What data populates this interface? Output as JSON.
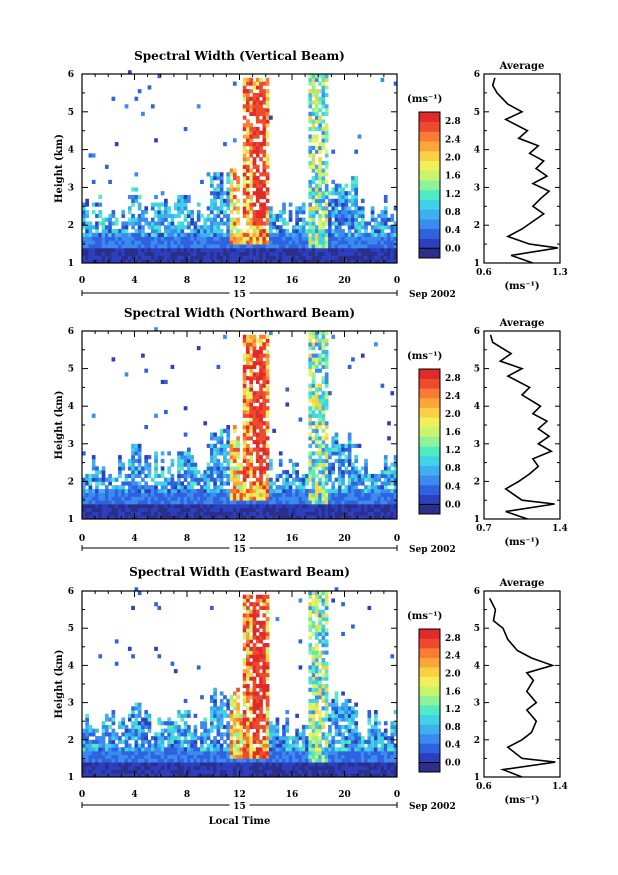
{
  "chart_data": [
    {
      "type": "heatmap",
      "title": "Spectral Width (Vertical Beam)",
      "ylabel": "Height (km)",
      "x_ticks": [
        "0",
        "4",
        "8",
        "12",
        "16",
        "20",
        "0"
      ],
      "y_ticks": [
        "1",
        "2",
        "3",
        "4",
        "5",
        "6"
      ],
      "xlim": [
        0,
        24
      ],
      "ylim": [
        1,
        6
      ],
      "day_label": "15",
      "date_label": "Sep 2002",
      "colorbar": {
        "unit": "(ms⁻¹)",
        "ticks": [
          "0.0",
          "0.4",
          "0.8",
          "1.2",
          "1.6",
          "2.0",
          "2.4",
          "2.8"
        ],
        "range": [
          0,
          3.0
        ]
      },
      "profile": {
        "title": "Average",
        "xlabel": "(ms⁻¹)",
        "x_ticks": [
          "0.6",
          "1.3"
        ],
        "xlim": [
          0.6,
          1.3
        ],
        "y_ticks": [
          "1",
          "2",
          "3",
          "4",
          "5",
          "6"
        ],
        "ylim": [
          1,
          6
        ],
        "points": [
          [
            1.05,
            1.0
          ],
          [
            0.85,
            1.2
          ],
          [
            1.28,
            1.4
          ],
          [
            1.02,
            1.5
          ],
          [
            0.82,
            1.7
          ],
          [
            0.95,
            1.9
          ],
          [
            1.05,
            2.1
          ],
          [
            1.15,
            2.3
          ],
          [
            1.05,
            2.5
          ],
          [
            1.12,
            2.7
          ],
          [
            1.2,
            2.9
          ],
          [
            1.05,
            3.1
          ],
          [
            1.18,
            3.3
          ],
          [
            1.08,
            3.5
          ],
          [
            1.15,
            3.7
          ],
          [
            1.02,
            3.9
          ],
          [
            1.1,
            4.1
          ],
          [
            0.92,
            4.3
          ],
          [
            1.0,
            4.5
          ],
          [
            0.8,
            4.8
          ],
          [
            0.95,
            5.0
          ],
          [
            0.82,
            5.2
          ],
          [
            0.72,
            5.5
          ],
          [
            0.68,
            5.7
          ],
          [
            0.7,
            5.9
          ]
        ]
      },
      "cells_note": "no_text"
    },
    {
      "type": "heatmap",
      "title": "Spectral Width (Northward Beam)",
      "ylabel": "Height (km)",
      "x_ticks": [
        "0",
        "4",
        "8",
        "12",
        "16",
        "20",
        "0"
      ],
      "y_ticks": [
        "1",
        "2",
        "3",
        "4",
        "5",
        "6"
      ],
      "xlim": [
        0,
        24
      ],
      "ylim": [
        1,
        6
      ],
      "day_label": "15",
      "date_label": "Sep 2002",
      "colorbar": {
        "unit": "(ms⁻¹)",
        "ticks": [
          "0.0",
          "0.4",
          "0.8",
          "1.2",
          "1.6",
          "2.0",
          "2.4",
          "2.8"
        ],
        "range": [
          0,
          3.0
        ]
      },
      "profile": {
        "title": "Average",
        "xlabel": "(ms⁻¹)",
        "x_ticks": [
          "0.7",
          "1.4"
        ],
        "xlim": [
          0.7,
          1.4
        ],
        "y_ticks": [
          "1",
          "2",
          "3",
          "4",
          "5",
          "6"
        ],
        "ylim": [
          1,
          6
        ],
        "points": [
          [
            1.1,
            1.0
          ],
          [
            0.9,
            1.2
          ],
          [
            1.35,
            1.4
          ],
          [
            1.05,
            1.5
          ],
          [
            0.9,
            1.8
          ],
          [
            1.02,
            2.0
          ],
          [
            1.12,
            2.2
          ],
          [
            1.2,
            2.4
          ],
          [
            1.15,
            2.6
          ],
          [
            1.32,
            2.8
          ],
          [
            1.2,
            3.0
          ],
          [
            1.3,
            3.2
          ],
          [
            1.2,
            3.4
          ],
          [
            1.28,
            3.6
          ],
          [
            1.15,
            3.8
          ],
          [
            1.22,
            4.0
          ],
          [
            1.05,
            4.3
          ],
          [
            1.12,
            4.5
          ],
          [
            0.92,
            4.8
          ],
          [
            1.05,
            5.0
          ],
          [
            0.85,
            5.2
          ],
          [
            0.95,
            5.4
          ],
          [
            0.78,
            5.7
          ],
          [
            0.76,
            5.9
          ]
        ]
      },
      "cells_note": "no_text"
    },
    {
      "type": "heatmap",
      "title": "Spectral Width (Eastward Beam)",
      "ylabel": "Height (km)",
      "xlabel": "Local Time",
      "x_ticks": [
        "0",
        "4",
        "8",
        "12",
        "16",
        "20",
        "0"
      ],
      "y_ticks": [
        "1",
        "2",
        "3",
        "4",
        "5",
        "6"
      ],
      "xlim": [
        0,
        24
      ],
      "ylim": [
        1,
        6
      ],
      "day_label": "15",
      "date_label": "Sep 2002",
      "colorbar": {
        "unit": "(ms⁻¹)",
        "ticks": [
          "0.0",
          "0.4",
          "0.8",
          "1.2",
          "1.6",
          "2.0",
          "2.4",
          "2.8"
        ],
        "range": [
          0,
          3.0
        ]
      },
      "profile": {
        "title": "Average",
        "xlabel": "(ms⁻¹)",
        "x_ticks": [
          "0.6",
          "1.4"
        ],
        "xlim": [
          0.6,
          1.4
        ],
        "y_ticks": [
          "1",
          "2",
          "3",
          "4",
          "5",
          "6"
        ],
        "ylim": [
          1,
          6
        ],
        "points": [
          [
            1.0,
            1.0
          ],
          [
            0.8,
            1.2
          ],
          [
            1.35,
            1.4
          ],
          [
            1.0,
            1.5
          ],
          [
            0.85,
            1.8
          ],
          [
            1.0,
            2.0
          ],
          [
            1.1,
            2.2
          ],
          [
            1.15,
            2.5
          ],
          [
            1.05,
            2.8
          ],
          [
            1.15,
            3.0
          ],
          [
            1.05,
            3.3
          ],
          [
            1.12,
            3.6
          ],
          [
            1.05,
            3.8
          ],
          [
            1.32,
            4.0
          ],
          [
            1.1,
            4.2
          ],
          [
            0.95,
            4.4
          ],
          [
            0.85,
            4.7
          ],
          [
            0.8,
            5.0
          ],
          [
            0.7,
            5.2
          ],
          [
            0.72,
            5.5
          ],
          [
            0.66,
            5.8
          ]
        ]
      },
      "cells_note": "no_text"
    }
  ],
  "colors": {
    "palette": [
      "#2b2f8a",
      "#2c3fbf",
      "#2f62df",
      "#3a8aef",
      "#3eb0f0",
      "#3fd3e8",
      "#52eac2",
      "#8ff29a",
      "#c8f46e",
      "#eff05a",
      "#fbd042",
      "#fca63a",
      "#f97b34",
      "#ee4a2e",
      "#e12a2a"
    ]
  }
}
